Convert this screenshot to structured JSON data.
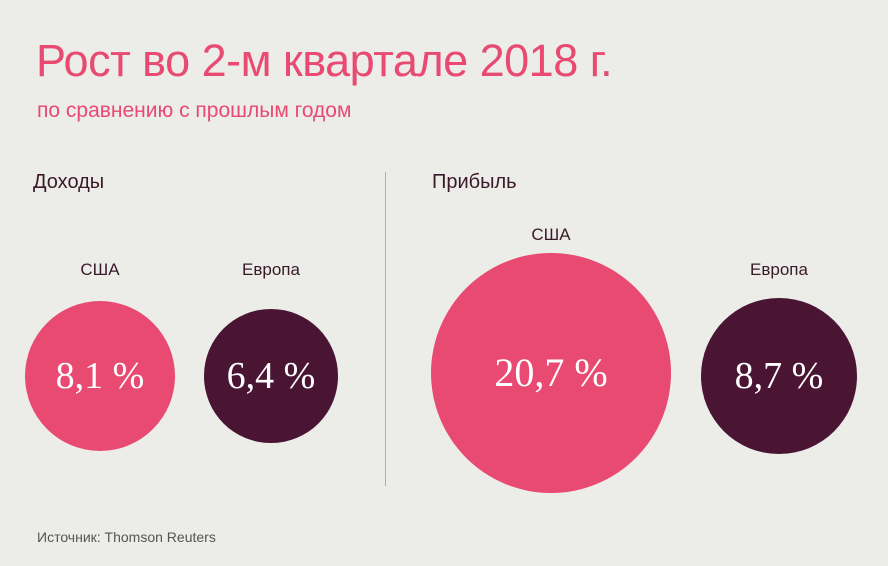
{
  "title": "Рост во 2-м квартале 2018 г.",
  "subtitle": "по сравнению с прошлым годом",
  "source": "Источник: Thomson Reuters",
  "colors": {
    "us": "#E84A72",
    "europe": "#4A1533"
  },
  "chart_data": [
    {
      "type": "bubble",
      "title": "Доходы",
      "unit": "%",
      "categories": [
        "США",
        "Европа"
      ],
      "values": [
        8.1,
        6.4
      ],
      "value_labels": [
        "8,1 %",
        "6,4 %"
      ]
    },
    {
      "type": "bubble",
      "title": "Прибыль",
      "unit": "%",
      "categories": [
        "США",
        "Европа"
      ],
      "values": [
        20.7,
        8.7
      ],
      "value_labels": [
        "20,7 %",
        "8,7 %"
      ]
    }
  ]
}
